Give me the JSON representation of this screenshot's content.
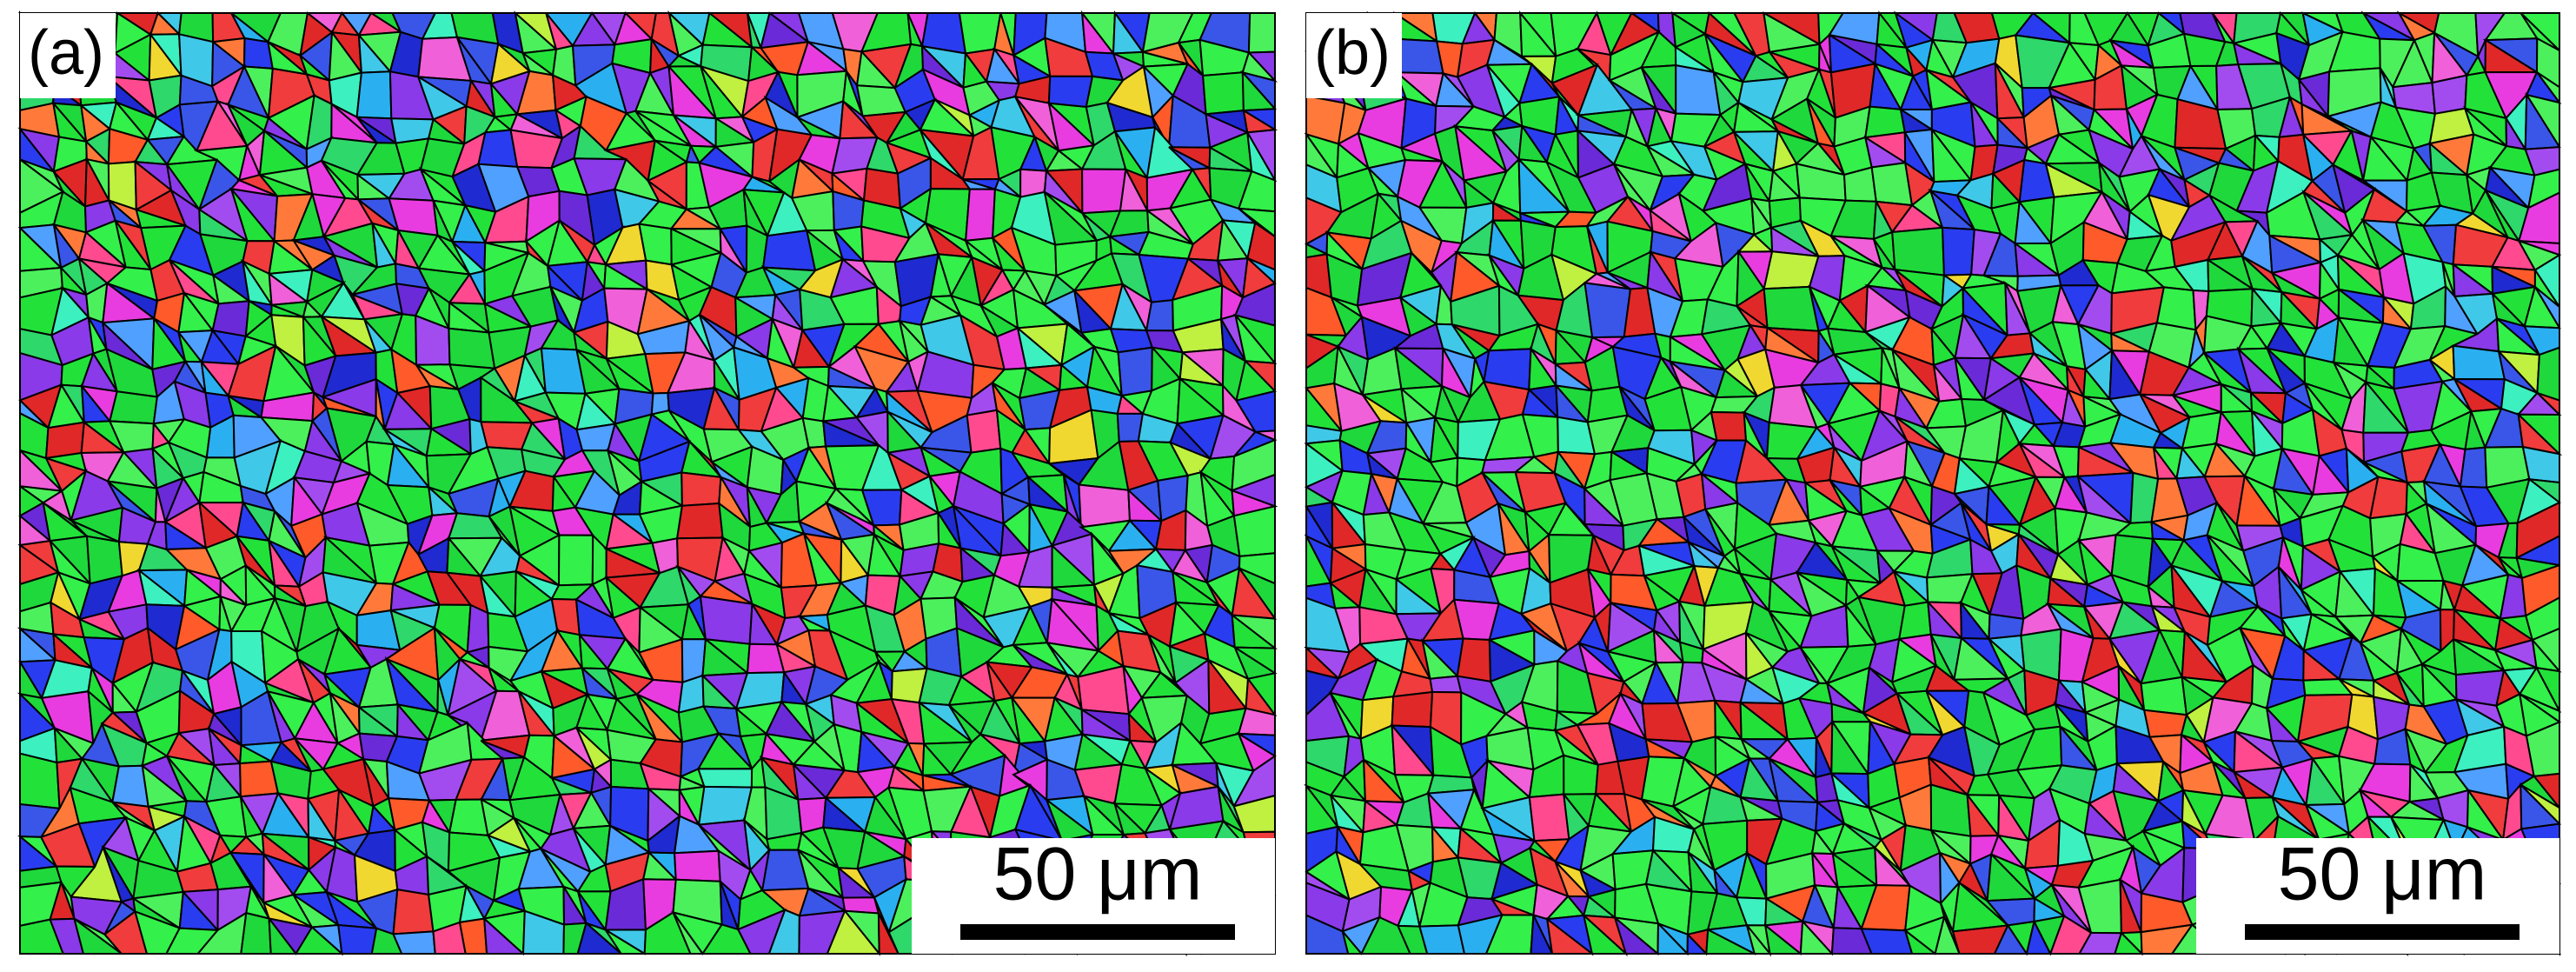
{
  "panels": [
    {
      "label": "(a)",
      "scale_bar": "50 μm"
    },
    {
      "label": "(b)",
      "scale_bar": "50 μm"
    }
  ]
}
